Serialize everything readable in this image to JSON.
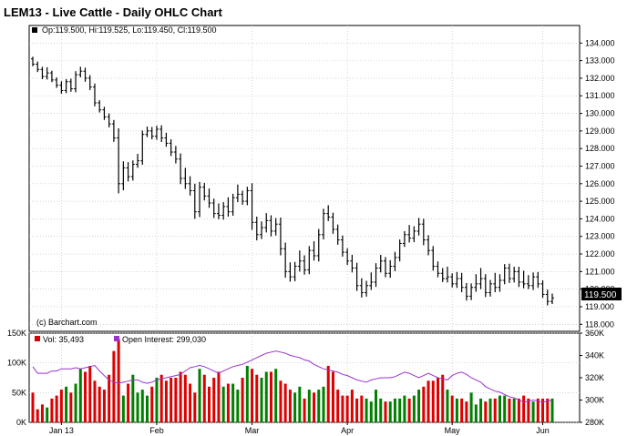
{
  "title": "LEM13 - Live Cattle - Daily OHLC Chart",
  "ohlc_legend": "Op:119.500, Hi:119.525, Lo:119.450, Cl:119.500",
  "watermark": "(c) Barchart.com",
  "last_price_label": "119.500",
  "volume_legend": "Vol: 35,493",
  "oi_legend": "Open Interest: 299,030",
  "colors": {
    "price_bar": "#000000",
    "volume_up": "#008000",
    "volume_down": "#dd0000",
    "open_interest": "#9933cc",
    "frame": "#000000",
    "grid": "#bbbbbb"
  },
  "chart_data": [
    {
      "type": "ohlc",
      "title": "LEM13 - Live Cattle - Daily OHLC Chart",
      "x_tick_labels": [
        "Jan 13",
        "Feb",
        "Mar",
        "Apr",
        "May",
        "Jun"
      ],
      "y_tick_labels": [
        "118.000",
        "119.000",
        "120.000",
        "121.000",
        "122.000",
        "123.000",
        "124.000",
        "125.000",
        "126.000",
        "127.000",
        "128.000",
        "129.000",
        "130.000",
        "131.000",
        "132.000",
        "133.000",
        "134.000"
      ],
      "ylim": [
        117.6,
        135.0
      ],
      "grid": true,
      "last_close": 119.5,
      "closes": [
        132.8,
        132.5,
        132.1,
        132.3,
        131.9,
        131.6,
        131.3,
        131.8,
        131.4,
        132.2,
        132.4,
        132.0,
        131.5,
        130.6,
        130.2,
        129.8,
        129.4,
        128.6,
        126.0,
        126.9,
        126.4,
        127.1,
        127.3,
        128.8,
        129.0,
        128.7,
        129.1,
        128.6,
        128.3,
        127.8,
        127.4,
        126.3,
        126.0,
        125.6,
        124.4,
        125.8,
        125.3,
        124.9,
        124.3,
        124.2,
        124.7,
        124.4,
        125.2,
        125.4,
        125.0,
        125.6,
        123.8,
        123.1,
        123.5,
        123.9,
        123.3,
        123.7,
        122.3,
        121.0,
        120.7,
        121.3,
        121.6,
        121.1,
        122.2,
        121.9,
        123.1,
        124.3,
        124.1,
        123.4,
        122.8,
        122.1,
        121.6,
        121.2,
        120.2,
        119.8,
        120.2,
        120.4,
        121.2,
        121.6,
        120.9,
        121.3,
        121.8,
        122.6,
        123.1,
        122.9,
        123.3,
        123.7,
        122.8,
        122.2,
        121.3,
        120.9,
        120.6,
        120.7,
        120.3,
        120.6,
        120.1,
        119.6,
        120.1,
        120.3,
        120.6,
        119.8,
        120.3,
        120.1,
        120.5,
        121.2,
        120.6,
        121.0,
        120.4,
        120.3,
        120.2,
        120.7,
        120.3,
        119.7,
        119.3,
        119.5
      ],
      "ranges": [
        0.5,
        0.6,
        0.6,
        0.7,
        0.5,
        0.6,
        0.7,
        0.6,
        0.7,
        0.8,
        0.6,
        0.8,
        0.7,
        0.8,
        0.6,
        0.7,
        0.8,
        0.9,
        2.2,
        1.5,
        1.1,
        0.9,
        0.8,
        0.9,
        0.6,
        0.7,
        0.8,
        0.9,
        0.8,
        0.9,
        1.0,
        1.3,
        1.2,
        1.1,
        1.6,
        1.2,
        1.0,
        1.1,
        1.0,
        0.9,
        1.0,
        1.1,
        0.9,
        1.0,
        0.8,
        0.9,
        1.7,
        1.3,
        1.0,
        1.1,
        1.2,
        1.0,
        1.5,
        1.4,
        1.1,
        1.0,
        1.2,
        1.1,
        1.0,
        1.1,
        1.3,
        1.1,
        0.9,
        1.0,
        1.1,
        1.0,
        0.9,
        1.0,
        1.2,
        1.1,
        0.9,
        1.0,
        1.1,
        1.0,
        0.9,
        1.0,
        1.1,
        0.9,
        0.8,
        1.0,
        0.9,
        1.0,
        1.2,
        1.1,
        1.0,
        0.9,
        0.8,
        0.9,
        0.8,
        0.9,
        1.1,
        1.0,
        0.9,
        1.0,
        1.2,
        1.0,
        0.9,
        1.1,
        1.0,
        0.9,
        1.0,
        0.9,
        1.1,
        1.0,
        0.8,
        1.0,
        0.9,
        0.8,
        0.9,
        0.6
      ]
    },
    {
      "type": "bar+line",
      "series": [
        {
          "name": "Vol",
          "unit": "contracts",
          "values": [
            50,
            22,
            30,
            25,
            40,
            45,
            55,
            60,
            50,
            65,
            90,
            85,
            95,
            70,
            60,
            55,
            80,
            120,
            140,
            45,
            65,
            80,
            50,
            55,
            45,
            60,
            75,
            80,
            70,
            75,
            75,
            85,
            80,
            65,
            50,
            90,
            80,
            60,
            75,
            85,
            60,
            65,
            65,
            55,
            75,
            95,
            90,
            80,
            75,
            85,
            85,
            90,
            70,
            65,
            55,
            50,
            60,
            40,
            55,
            50,
            55,
            60,
            95,
            85,
            55,
            45,
            45,
            55,
            40,
            45,
            40,
            35,
            55,
            40,
            35,
            35,
            40,
            40,
            45,
            40,
            45,
            55,
            60,
            70,
            70,
            75,
            80,
            55,
            45,
            40,
            40,
            35,
            50,
            30,
            40,
            35,
            40,
            40,
            45,
            45,
            40,
            40,
            40,
            45,
            40,
            35,
            40,
            40,
            40,
            40
          ]
        },
        {
          "name": "Open Interest",
          "values": [
            330,
            324,
            324,
            324,
            326,
            326,
            328,
            328,
            328,
            329,
            328,
            329,
            330,
            331,
            326,
            322,
            318,
            316,
            315,
            316,
            317,
            318,
            318,
            316,
            315,
            316,
            318,
            319,
            320,
            321,
            322,
            323,
            326,
            329,
            330,
            331,
            330,
            328,
            326,
            324,
            326,
            328,
            330,
            331,
            332,
            334,
            336,
            338,
            340,
            342,
            343,
            344,
            343,
            342,
            340,
            339,
            338,
            336,
            335,
            332,
            330,
            328,
            327,
            326,
            325,
            323,
            322,
            320,
            318,
            317,
            316,
            318,
            319,
            320,
            320,
            320,
            321,
            323,
            325,
            324,
            322,
            320,
            322,
            324,
            322,
            320,
            319,
            318,
            322,
            324,
            325,
            323,
            320,
            318,
            316,
            312,
            310,
            308,
            307,
            305,
            303,
            302,
            300,
            298,
            299,
            300,
            299,
            298,
            299,
            300
          ]
        }
      ],
      "left_axis_labels": [
        "0K",
        "50K",
        "100K",
        "150K"
      ],
      "right_axis_labels": [
        "280K",
        "300K",
        "320K",
        "340K",
        "360K"
      ],
      "volume_ylim": [
        0,
        150
      ],
      "open_interest_ylim": [
        280,
        360
      ],
      "x_tick_labels": [
        "Jan 13",
        "Feb",
        "Mar",
        "Apr",
        "May",
        "Jun"
      ]
    }
  ]
}
